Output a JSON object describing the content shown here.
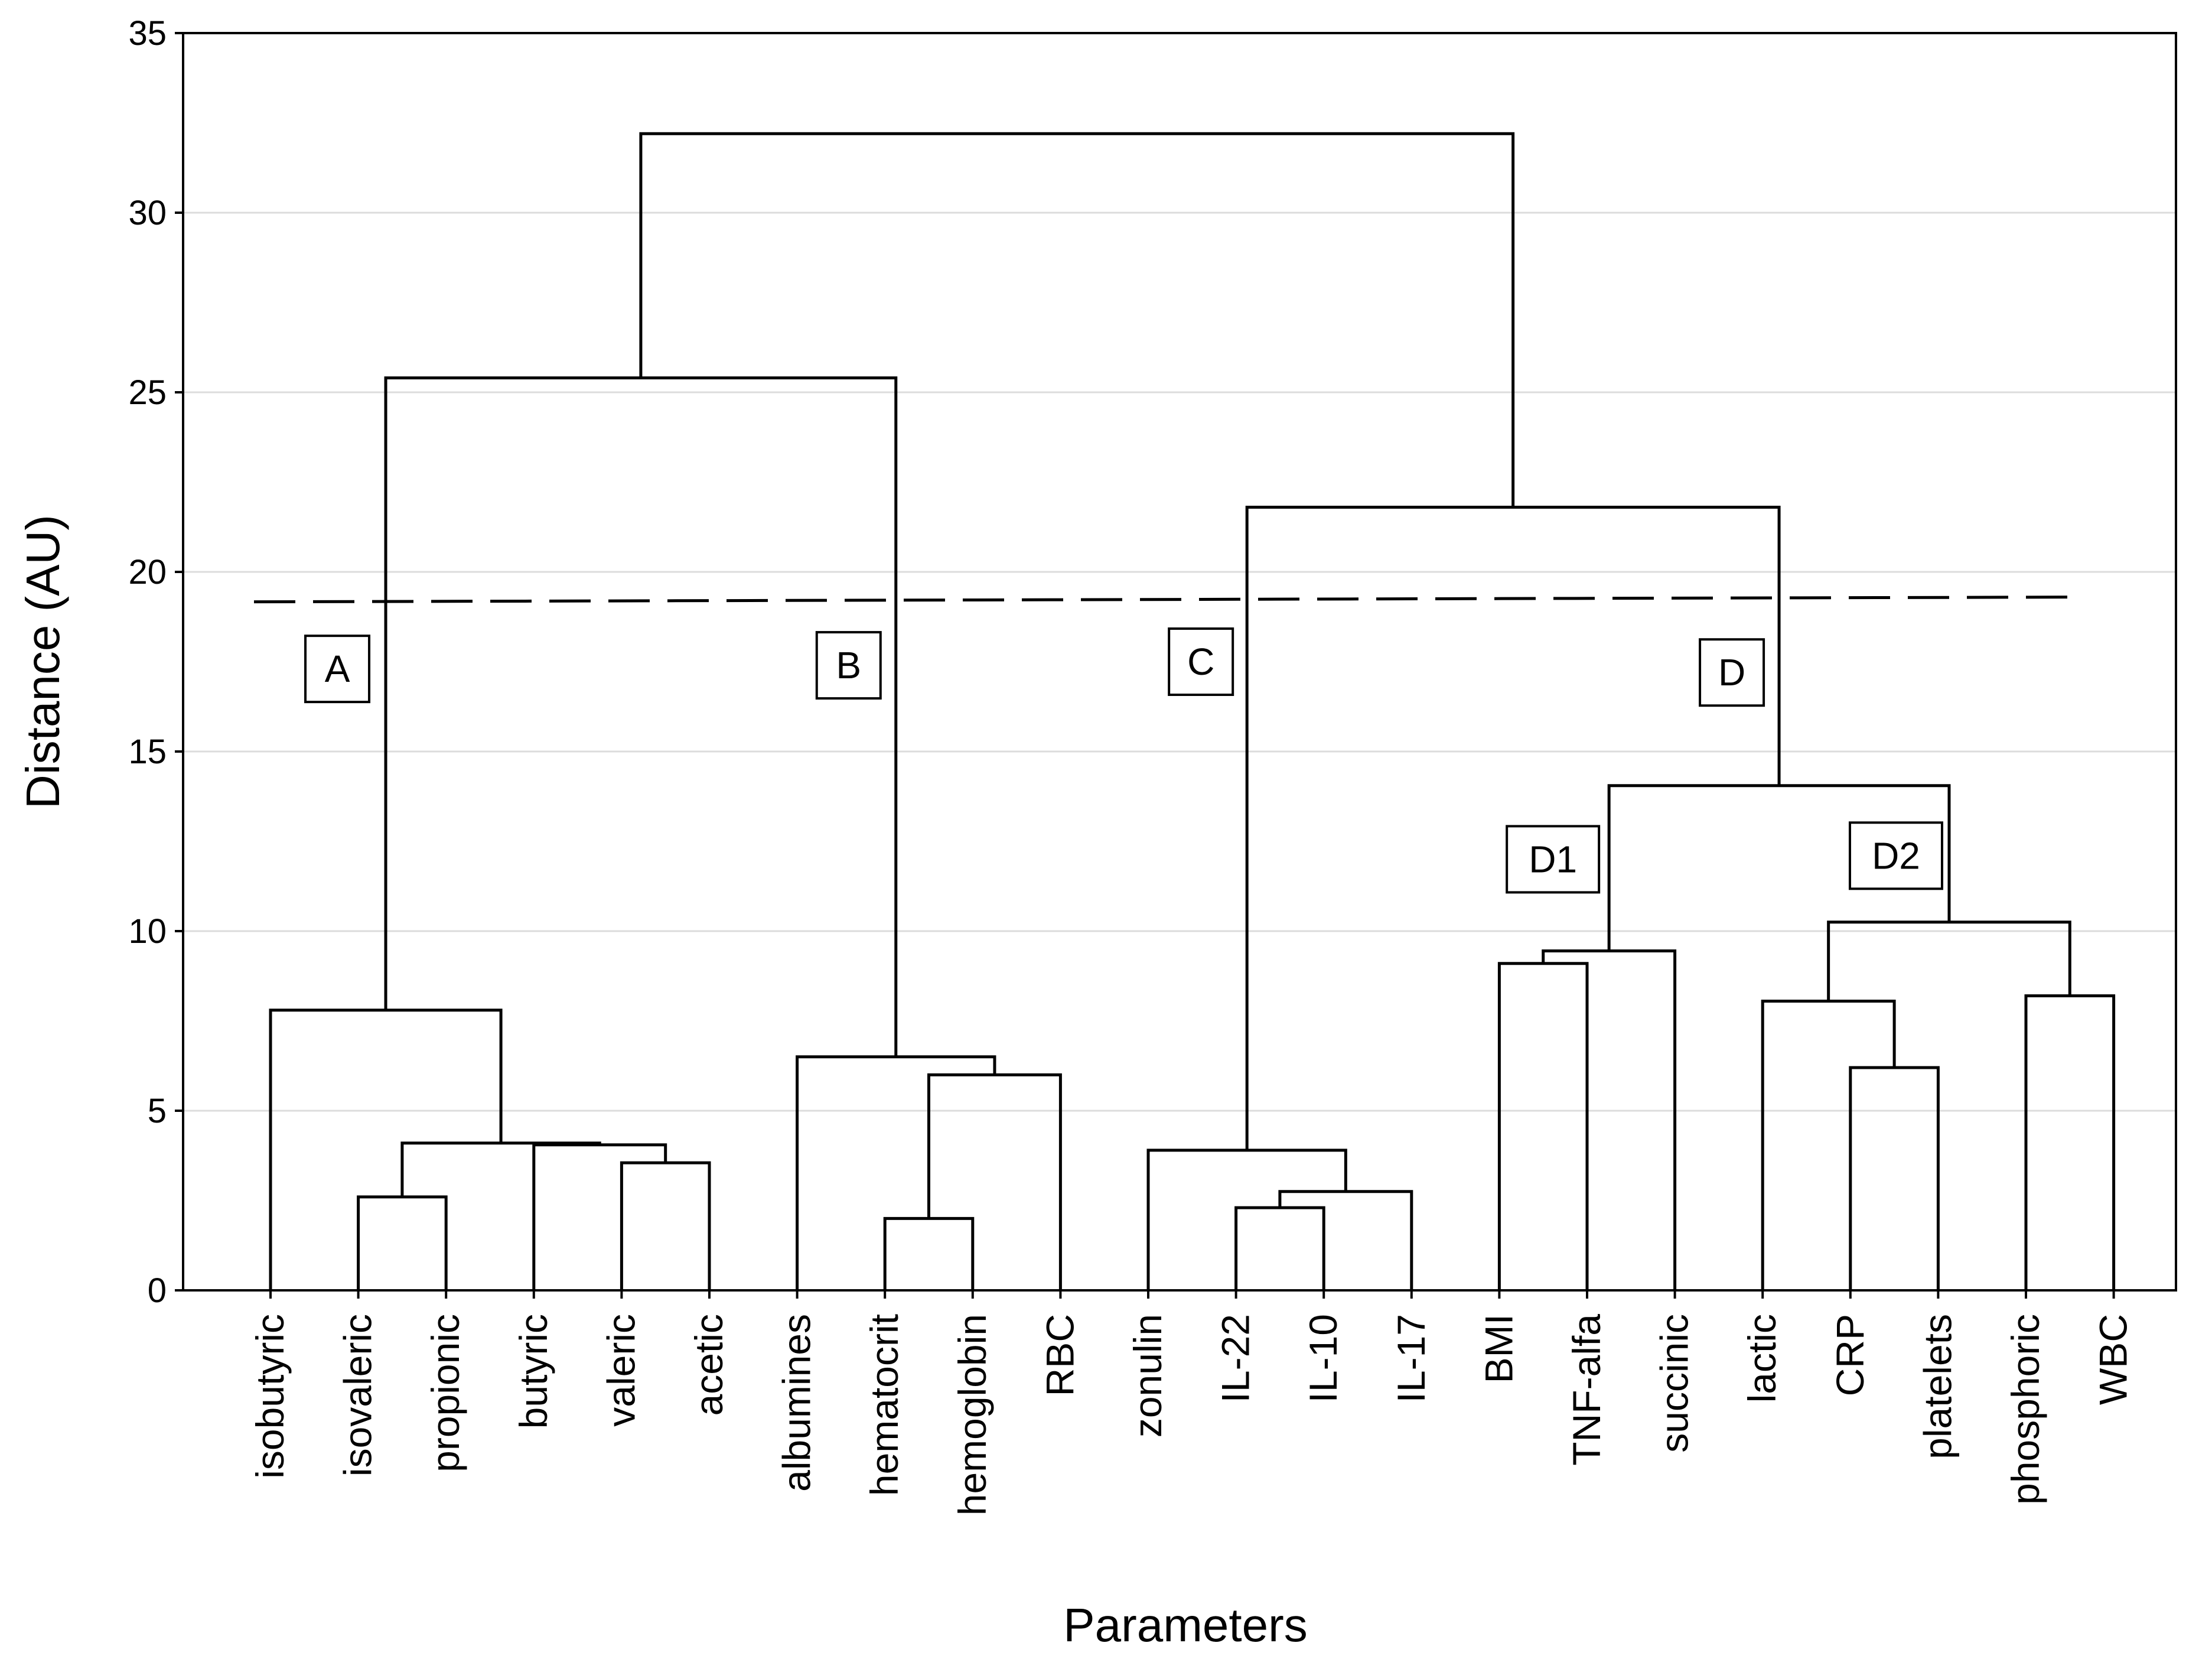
{
  "chart_data": {
    "type": "dendrogram",
    "xlabel": "Parameters",
    "ylabel": "Distance (AU)",
    "ylim": [
      0,
      35
    ],
    "yticks": [
      0,
      5,
      10,
      15,
      20,
      25,
      30,
      35
    ],
    "grid": true,
    "leaves": [
      "isobutyric",
      "isovaleric",
      "propionic",
      "butyric",
      "valeric",
      "acetic",
      "albumines",
      "hematocrit",
      "hemoglobin",
      "RBC",
      "zonulin",
      "IL-22",
      "IL-10",
      "IL-17",
      "BMI",
      "TNF-alfa",
      "succinic",
      "lactic",
      "CRP",
      "platelets",
      "phosphoric",
      "WBC"
    ],
    "merges": [
      {
        "left": "hematocrit",
        "right": "hemoglobin",
        "distance": 2.0
      },
      {
        "left": "IL-22",
        "right": "IL-10",
        "distance": 2.3
      },
      {
        "left": "isovaleric",
        "right": "propionic",
        "distance": 2.6
      },
      {
        "left": "m2",
        "right": "IL-17",
        "distance": 2.75
      },
      {
        "left": "valeric",
        "right": "acetic",
        "distance": 3.55
      },
      {
        "left": "zonulin",
        "right": "m4",
        "distance": 3.9
      },
      {
        "left": "butyric",
        "right": "m5",
        "distance": 4.05
      },
      {
        "left": "m3",
        "right": "m7",
        "distance": 4.1
      },
      {
        "left": "m1",
        "right": "RBC",
        "distance": 6.0
      },
      {
        "left": "CRP",
        "right": "platelets",
        "distance": 6.2
      },
      {
        "left": "albumines",
        "right": "m9",
        "distance": 6.5
      },
      {
        "left": "isobutyric",
        "right": "m8",
        "distance": 7.8
      },
      {
        "left": "lactic",
        "right": "m10",
        "distance": 8.05
      },
      {
        "left": "phosphoric",
        "right": "WBC",
        "distance": 8.2
      },
      {
        "left": "BMI",
        "right": "TNF-alfa",
        "distance": 9.1
      },
      {
        "left": "m15",
        "right": "succinic",
        "distance": 9.45
      },
      {
        "left": "m13",
        "right": "m14",
        "distance": 10.25
      },
      {
        "left": "m16",
        "right": "m17",
        "distance": 14.05
      },
      {
        "left": "m6",
        "right": "m18",
        "distance": 21.8
      },
      {
        "left": "m12",
        "right": "m11",
        "distance": 25.4
      },
      {
        "left": "m20",
        "right": "m19",
        "distance": 32.2
      }
    ],
    "cut_line": 19.2,
    "clusters": [
      {
        "label": "A",
        "y": 17.3
      },
      {
        "label": "B",
        "y": 17.4
      },
      {
        "label": "C",
        "y": 17.5
      },
      {
        "label": "D",
        "y": 17.2
      },
      {
        "label": "D1",
        "y": 12.0
      },
      {
        "label": "D2",
        "y": 12.1
      }
    ]
  }
}
